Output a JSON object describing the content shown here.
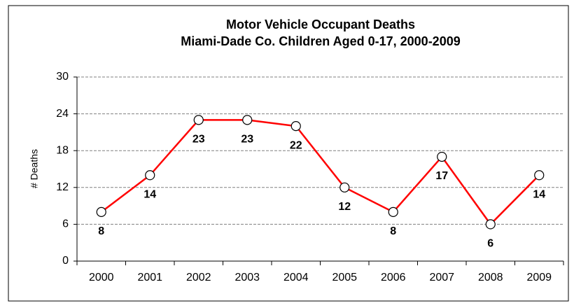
{
  "chart_data": {
    "type": "line",
    "title": "Motor Vehicle Occupant Deaths",
    "subtitle": "Miami-Dade Co. Children Aged 0-17, 2000-2009",
    "y_label": "# Deaths",
    "categories": [
      "2000",
      "2001",
      "2002",
      "2003",
      "2004",
      "2005",
      "2006",
      "2007",
      "2008",
      "2009"
    ],
    "series": [
      {
        "name": "Deaths",
        "color": "#ff0000",
        "values": [
          8,
          14,
          23,
          23,
          22,
          12,
          8,
          17,
          6,
          14
        ]
      }
    ],
    "ylim": [
      0,
      30
    ],
    "yticks": [
      0,
      6,
      12,
      18,
      24,
      30
    ],
    "grid": true
  }
}
